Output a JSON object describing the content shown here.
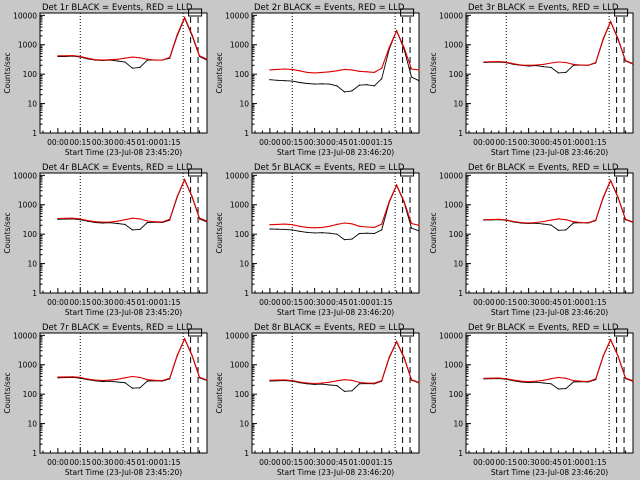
{
  "colors": {
    "background": "#c8c8c8",
    "plot_bg": "#ffffff",
    "events": "#000000",
    "lld": "#e00000"
  },
  "chart_data": [
    {
      "type": "line",
      "title": "Det 1r BLACK = Events, RED = LLD",
      "xlabel": "Start Time (23-Jul-08 23:45:20)",
      "ylabel": "Counts/sec",
      "x_ticks": [
        "00:00",
        "00:15",
        "00:30",
        "00:45",
        "01:00",
        "01:15"
      ],
      "y_ticks": [
        "1",
        "10",
        "100",
        "1000",
        "10000"
      ],
      "y_scale": "log",
      "ylim": [
        1,
        12000
      ],
      "x_minutes": [
        0,
        5,
        10,
        15,
        20,
        25,
        30,
        35,
        40,
        45,
        50,
        55,
        60,
        65,
        70,
        75,
        80,
        85,
        90,
        95,
        100
      ],
      "series": [
        {
          "name": "Events",
          "color": "#000000",
          "values": [
            400,
            400,
            410,
            380,
            330,
            300,
            290,
            300,
            280,
            260,
            160,
            170,
            300,
            300,
            300,
            350,
            2000,
            8000,
            2000,
            400,
            300
          ]
        },
        {
          "name": "LLD",
          "color": "#e00000",
          "values": [
            420,
            420,
            430,
            400,
            350,
            310,
            300,
            310,
            320,
            350,
            380,
            360,
            320,
            300,
            300,
            370,
            2200,
            8500,
            2200,
            420,
            320
          ]
        }
      ],
      "annotations": {
        "dotted_vlines_min": [
          15,
          84
        ],
        "dashed_vlines_min": [
          89,
          94
        ],
        "box_label": "⊏⊐"
      }
    },
    {
      "type": "line",
      "title": "Det 2r BLACK = Events, RED = LLD",
      "xlabel": "Start Time (23-Jul-08 23:46:20)",
      "ylabel": "Counts/sec",
      "x_ticks": [
        "00:00",
        "00:15",
        "00:30",
        "00:45",
        "01:00",
        "01:15"
      ],
      "y_ticks": [
        "1",
        "10",
        "100",
        "1000",
        "10000"
      ],
      "y_scale": "log",
      "ylim": [
        1,
        12000
      ],
      "x_minutes": [
        0,
        5,
        10,
        15,
        20,
        25,
        30,
        35,
        40,
        45,
        50,
        55,
        60,
        65,
        70,
        75,
        80,
        85,
        90,
        95,
        100
      ],
      "series": [
        {
          "name": "Events",
          "color": "#000000",
          "values": [
            65,
            62,
            60,
            58,
            52,
            48,
            46,
            47,
            46,
            40,
            25,
            27,
            42,
            44,
            40,
            70,
            700,
            3000,
            700,
            80,
            60
          ]
        },
        {
          "name": "LLD",
          "color": "#e00000",
          "values": [
            140,
            145,
            150,
            145,
            130,
            115,
            110,
            115,
            120,
            130,
            145,
            140,
            125,
            120,
            115,
            160,
            800,
            3000,
            800,
            150,
            140
          ]
        }
      ],
      "annotations": {
        "dotted_vlines_min": [
          15,
          84
        ],
        "dashed_vlines_min": [
          89,
          94
        ],
        "box_label": "⊏⊐"
      }
    },
    {
      "type": "line",
      "title": "Det 3r BLACK = Events, RED = LLD",
      "xlabel": "Start Time (23-Jul-08 23:46:20)",
      "ylabel": "Counts/sec",
      "x_ticks": [
        "00:00",
        "00:15",
        "00:30",
        "00:45",
        "01:00",
        "01:15"
      ],
      "y_ticks": [
        "1",
        "10",
        "100",
        "1000",
        "10000"
      ],
      "y_scale": "log",
      "ylim": [
        1,
        12000
      ],
      "x_minutes": [
        0,
        5,
        10,
        15,
        20,
        25,
        30,
        35,
        40,
        45,
        50,
        55,
        60,
        65,
        70,
        75,
        80,
        85,
        90,
        95,
        100
      ],
      "series": [
        {
          "name": "Events",
          "color": "#000000",
          "values": [
            250,
            255,
            260,
            245,
            215,
            200,
            190,
            195,
            180,
            170,
            110,
            115,
            200,
            205,
            200,
            240,
            1500,
            6000,
            1500,
            280,
            220
          ]
        },
        {
          "name": "LLD",
          "color": "#e00000",
          "values": [
            260,
            265,
            270,
            255,
            225,
            205,
            200,
            205,
            215,
            240,
            260,
            250,
            215,
            205,
            200,
            250,
            1600,
            6200,
            1600,
            290,
            230
          ]
        }
      ],
      "annotations": {
        "dotted_vlines_min": [
          15,
          84
        ],
        "dashed_vlines_min": [
          89,
          94
        ],
        "box_label": "⊏⊐"
      }
    },
    {
      "type": "line",
      "title": "Det 4r BLACK = Events, RED = LLD",
      "xlabel": "Start Time (23-Jul-08 23:45:20)",
      "ylabel": "Counts/sec",
      "x_ticks": [
        "00:00",
        "00:15",
        "00:30",
        "00:45",
        "01:00",
        "01:15"
      ],
      "y_ticks": [
        "1",
        "10",
        "100",
        "1000",
        "10000"
      ],
      "y_scale": "log",
      "ylim": [
        1,
        12000
      ],
      "x_minutes": [
        0,
        5,
        10,
        15,
        20,
        25,
        30,
        35,
        40,
        45,
        50,
        55,
        60,
        65,
        70,
        75,
        80,
        85,
        90,
        95,
        100
      ],
      "series": [
        {
          "name": "Events",
          "color": "#000000",
          "values": [
            320,
            325,
            330,
            310,
            275,
            250,
            240,
            245,
            230,
            215,
            140,
            145,
            250,
            255,
            250,
            300,
            1800,
            7000,
            1800,
            330,
            260
          ]
        },
        {
          "name": "LLD",
          "color": "#e00000",
          "values": [
            340,
            345,
            350,
            330,
            290,
            265,
            255,
            260,
            275,
            310,
            350,
            330,
            280,
            265,
            260,
            320,
            1900,
            7200,
            1900,
            350,
            280
          ]
        }
      ],
      "annotations": {
        "dotted_vlines_min": [
          15,
          84
        ],
        "dashed_vlines_min": [
          89,
          94
        ],
        "box_label": "⊏⊐"
      }
    },
    {
      "type": "line",
      "title": "Det 5r BLACK = Events, RED = LLD",
      "xlabel": "Start Time (23-Jul-08 23:46:20)",
      "ylabel": "Counts/sec",
      "x_ticks": [
        "00:00",
        "00:15",
        "00:30",
        "00:45",
        "01:00",
        "01:15"
      ],
      "y_ticks": [
        "1",
        "10",
        "100",
        "1000",
        "10000"
      ],
      "y_scale": "log",
      "ylim": [
        1,
        12000
      ],
      "x_minutes": [
        0,
        5,
        10,
        15,
        20,
        25,
        30,
        35,
        40,
        45,
        50,
        55,
        60,
        65,
        70,
        75,
        80,
        85,
        90,
        95,
        100
      ],
      "series": [
        {
          "name": "Events",
          "color": "#000000",
          "values": [
            150,
            148,
            145,
            140,
            125,
            115,
            110,
            112,
            108,
            100,
            65,
            68,
            105,
            108,
            105,
            140,
            1200,
            4500,
            1200,
            160,
            130
          ]
        },
        {
          "name": "LLD",
          "color": "#e00000",
          "values": [
            210,
            215,
            220,
            210,
            185,
            170,
            165,
            170,
            185,
            215,
            240,
            225,
            185,
            175,
            170,
            220,
            1300,
            4700,
            1300,
            230,
            200
          ]
        }
      ],
      "annotations": {
        "dotted_vlines_min": [
          15,
          84
        ],
        "dashed_vlines_min": [
          89,
          94
        ],
        "box_label": "⊏⊐"
      }
    },
    {
      "type": "line",
      "title": "Det 6r BLACK = Events, RED = LLD",
      "xlabel": "Start Time (23-Jul-08 23:46:20)",
      "ylabel": "Counts/sec",
      "x_ticks": [
        "00:00",
        "00:15",
        "00:30",
        "00:45",
        "01:00",
        "01:15"
      ],
      "y_ticks": [
        "1",
        "10",
        "100",
        "1000",
        "10000"
      ],
      "y_scale": "log",
      "ylim": [
        1,
        12000
      ],
      "x_minutes": [
        0,
        5,
        10,
        15,
        20,
        25,
        30,
        35,
        40,
        45,
        50,
        55,
        60,
        65,
        70,
        75,
        80,
        85,
        90,
        95,
        100
      ],
      "series": [
        {
          "name": "Events",
          "color": "#000000",
          "values": [
            300,
            305,
            310,
            295,
            260,
            240,
            230,
            235,
            220,
            205,
            135,
            140,
            240,
            245,
            240,
            290,
            1700,
            6500,
            1700,
            310,
            250
          ]
        },
        {
          "name": "LLD",
          "color": "#e00000",
          "values": [
            310,
            315,
            320,
            305,
            270,
            250,
            240,
            250,
            270,
            300,
            330,
            310,
            265,
            250,
            245,
            300,
            1800,
            6700,
            1800,
            320,
            260
          ]
        }
      ],
      "annotations": {
        "dotted_vlines_min": [
          15,
          84
        ],
        "dashed_vlines_min": [
          89,
          94
        ],
        "box_label": "⊏⊐"
      }
    },
    {
      "type": "line",
      "title": "Det 7r BLACK = Events, RED = LLD",
      "xlabel": "Start Time (23-Jul-08 23:45:20)",
      "ylabel": "Counts/sec",
      "x_ticks": [
        "00:00",
        "00:15",
        "00:30",
        "00:45",
        "01:00",
        "01:15"
      ],
      "y_ticks": [
        "1",
        "10",
        "100",
        "1000",
        "10000"
      ],
      "y_scale": "log",
      "ylim": [
        1,
        12000
      ],
      "x_minutes": [
        0,
        5,
        10,
        15,
        20,
        25,
        30,
        35,
        40,
        45,
        50,
        55,
        60,
        65,
        70,
        75,
        80,
        85,
        90,
        95,
        100
      ],
      "series": [
        {
          "name": "Events",
          "color": "#000000",
          "values": [
            360,
            365,
            370,
            350,
            310,
            285,
            270,
            275,
            260,
            245,
            160,
            165,
            280,
            285,
            280,
            330,
            2000,
            7500,
            2000,
            360,
            290
          ]
        },
        {
          "name": "LLD",
          "color": "#e00000",
          "values": [
            380,
            385,
            390,
            370,
            325,
            300,
            290,
            300,
            320,
            360,
            400,
            370,
            310,
            295,
            290,
            350,
            2100,
            7700,
            2100,
            380,
            300
          ]
        }
      ],
      "annotations": {
        "dotted_vlines_min": [
          15,
          84
        ],
        "dashed_vlines_min": [
          89,
          94
        ],
        "box_label": "⊏⊐"
      }
    },
    {
      "type": "line",
      "title": "Det 8r BLACK = Events, RED = LLD",
      "xlabel": "Start Time (23-Jul-08 23:46:20)",
      "ylabel": "Counts/sec",
      "x_ticks": [
        "00:00",
        "00:15",
        "00:30",
        "00:45",
        "01:00",
        "01:15"
      ],
      "y_ticks": [
        "1",
        "10",
        "100",
        "1000",
        "10000"
      ],
      "y_scale": "log",
      "ylim": [
        1,
        12000
      ],
      "x_minutes": [
        0,
        5,
        10,
        15,
        20,
        25,
        30,
        35,
        40,
        45,
        50,
        55,
        60,
        65,
        70,
        75,
        80,
        85,
        90,
        95,
        100
      ],
      "series": [
        {
          "name": "Events",
          "color": "#000000",
          "values": [
            280,
            285,
            290,
            275,
            245,
            225,
            215,
            220,
            205,
            195,
            125,
            130,
            225,
            230,
            225,
            275,
            1700,
            6000,
            1700,
            300,
            240
          ]
        },
        {
          "name": "LLD",
          "color": "#e00000",
          "values": [
            295,
            300,
            305,
            290,
            260,
            240,
            230,
            240,
            255,
            285,
            310,
            295,
            250,
            240,
            235,
            290,
            1800,
            6200,
            1800,
            310,
            250
          ]
        }
      ],
      "annotations": {
        "dotted_vlines_min": [
          15,
          84
        ],
        "dashed_vlines_min": [
          89,
          94
        ],
        "box_label": "⊏⊐"
      }
    },
    {
      "type": "line",
      "title": "Det 9r BLACK = Events, RED = LLD",
      "xlabel": "Start Time (23-Jul-08 23:46:20)",
      "ylabel": "Counts/sec",
      "x_ticks": [
        "00:00",
        "00:15",
        "00:30",
        "00:45",
        "01:00",
        "01:15"
      ],
      "y_ticks": [
        "1",
        "10",
        "100",
        "1000",
        "10000"
      ],
      "y_scale": "log",
      "ylim": [
        1,
        12000
      ],
      "x_minutes": [
        0,
        5,
        10,
        15,
        20,
        25,
        30,
        35,
        40,
        45,
        50,
        55,
        60,
        65,
        70,
        75,
        80,
        85,
        90,
        95,
        100
      ],
      "series": [
        {
          "name": "Events",
          "color": "#000000",
          "values": [
            330,
            335,
            340,
            320,
            285,
            260,
            250,
            255,
            240,
            225,
            150,
            155,
            260,
            265,
            260,
            310,
            1900,
            7000,
            1900,
            340,
            270
          ]
        },
        {
          "name": "LLD",
          "color": "#e00000",
          "values": [
            345,
            350,
            355,
            335,
            300,
            275,
            265,
            275,
            295,
            335,
            370,
            345,
            290,
            275,
            270,
            330,
            2000,
            7200,
            2000,
            355,
            285
          ]
        }
      ],
      "annotations": {
        "dotted_vlines_min": [
          15,
          84
        ],
        "dashed_vlines_min": [
          89,
          94
        ],
        "box_label": "⊏⊐"
      }
    }
  ]
}
